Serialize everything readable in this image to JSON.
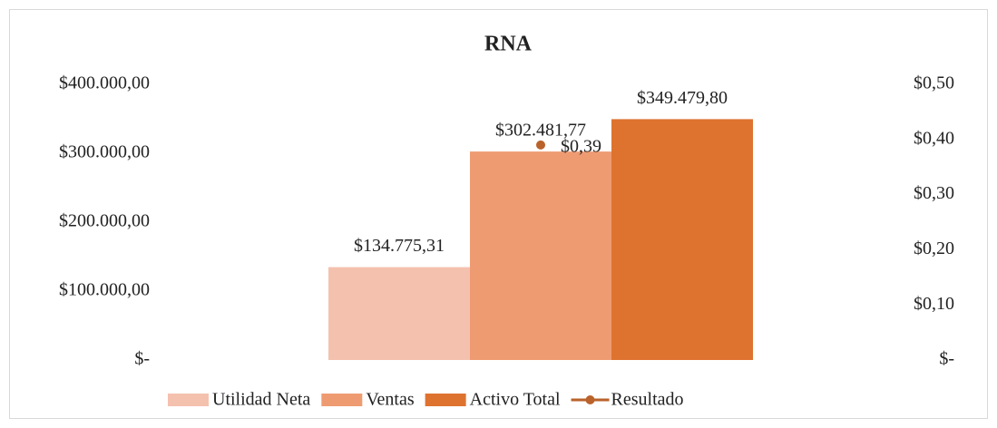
{
  "chart_data": {
    "type": "bar",
    "title": "RNA",
    "categories": [
      null
    ],
    "series": [
      {
        "name": "Utilidad Neta",
        "color": "#f4c1ae",
        "values": [
          134775.31
        ],
        "value_labels": [
          "$134.775,31"
        ]
      },
      {
        "name": "Ventas",
        "color": "#ef9b72",
        "values": [
          302481.77
        ],
        "value_labels": [
          "$302.481,77"
        ]
      },
      {
        "name": "Activo Total",
        "color": "#de7330",
        "values": [
          349479.8
        ],
        "value_labels": [
          "$349.479,80"
        ]
      },
      {
        "name": "Resultado",
        "color": "#b9622a",
        "type": "line",
        "axis": "y2",
        "values": [
          0.39
        ],
        "value_labels": [
          "$0,39"
        ]
      }
    ],
    "ylim": [
      0,
      400000
    ],
    "yticks": [
      {
        "value": 0,
        "label": "$-"
      },
      {
        "value": 100000,
        "label": "$100.000,00"
      },
      {
        "value": 200000,
        "label": "$200.000,00"
      },
      {
        "value": 300000,
        "label": "$300.000,00"
      },
      {
        "value": 400000,
        "label": "$400.000,00"
      }
    ],
    "y2lim": [
      0,
      0.5
    ],
    "y2ticks": [
      {
        "value": 0,
        "label": "$-"
      },
      {
        "value": 0.1,
        "label": "$0,10"
      },
      {
        "value": 0.2,
        "label": "$0,20"
      },
      {
        "value": 0.3,
        "label": "$0,30"
      },
      {
        "value": 0.4,
        "label": "$0,40"
      },
      {
        "value": 0.5,
        "label": "$0,50"
      }
    ],
    "grid": false,
    "legend": "bottom"
  }
}
